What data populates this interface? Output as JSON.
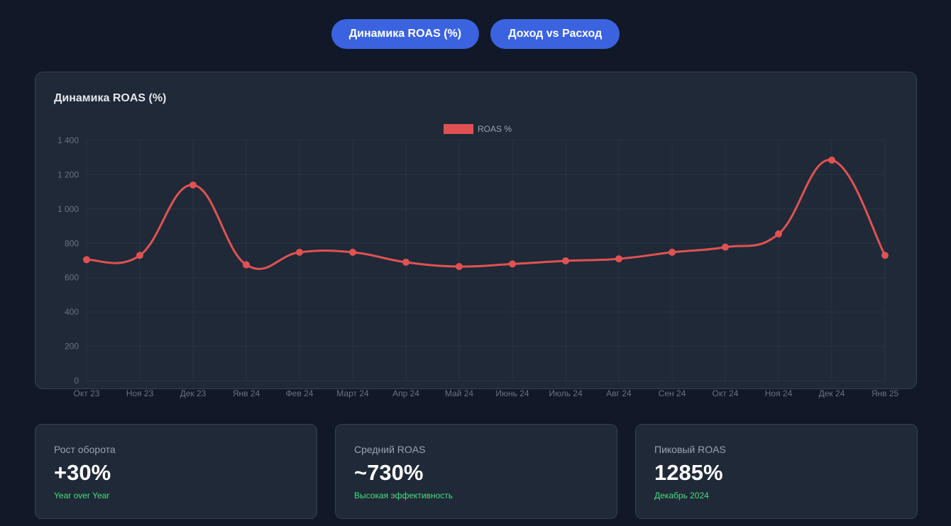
{
  "tabs": [
    {
      "label": "Динамика ROAS (%)"
    },
    {
      "label": "Доход vs Расход"
    }
  ],
  "chart_card": {
    "title": "Динамика ROAS (%)"
  },
  "colors": {
    "series": "#e05252",
    "tab": "#3b63e0",
    "accent_text": "#4ade80"
  },
  "chart_data": {
    "type": "line",
    "title": "Динамика ROAS (%)",
    "categories": [
      "Окт 23",
      "Ноя 23",
      "Дек 23",
      "Янв 24",
      "Фев 24",
      "Март 24",
      "Апр 24",
      "Май 24",
      "Июнь 24",
      "Июль 24",
      "Авг 24",
      "Сен 24",
      "Окт 24",
      "Ноя 24",
      "Дек 24",
      "Янв 25"
    ],
    "series": [
      {
        "name": "ROAS %",
        "values": [
          705,
          730,
          1140,
          675,
          748,
          748,
          690,
          665,
          680,
          698,
          710,
          748,
          778,
          855,
          1285,
          730
        ]
      }
    ],
    "ylim": [
      0,
      1400
    ],
    "yticks": [
      0,
      200,
      400,
      600,
      800,
      1000,
      1200,
      1400
    ],
    "ytick_labels": [
      "0",
      "200",
      "400",
      "600",
      "800",
      "1 000",
      "1 200",
      "1 400"
    ],
    "legend": "top-center",
    "grid": true,
    "smooth": true
  },
  "stats": [
    {
      "label": "Рост оборота",
      "value": "+30%",
      "sub": "Year over Year"
    },
    {
      "label": "Средний ROAS",
      "value": "~730%",
      "sub": "Высокая эффективность"
    },
    {
      "label": "Пиковый ROAS",
      "value": "1285%",
      "sub": "Декабрь 2024"
    }
  ]
}
